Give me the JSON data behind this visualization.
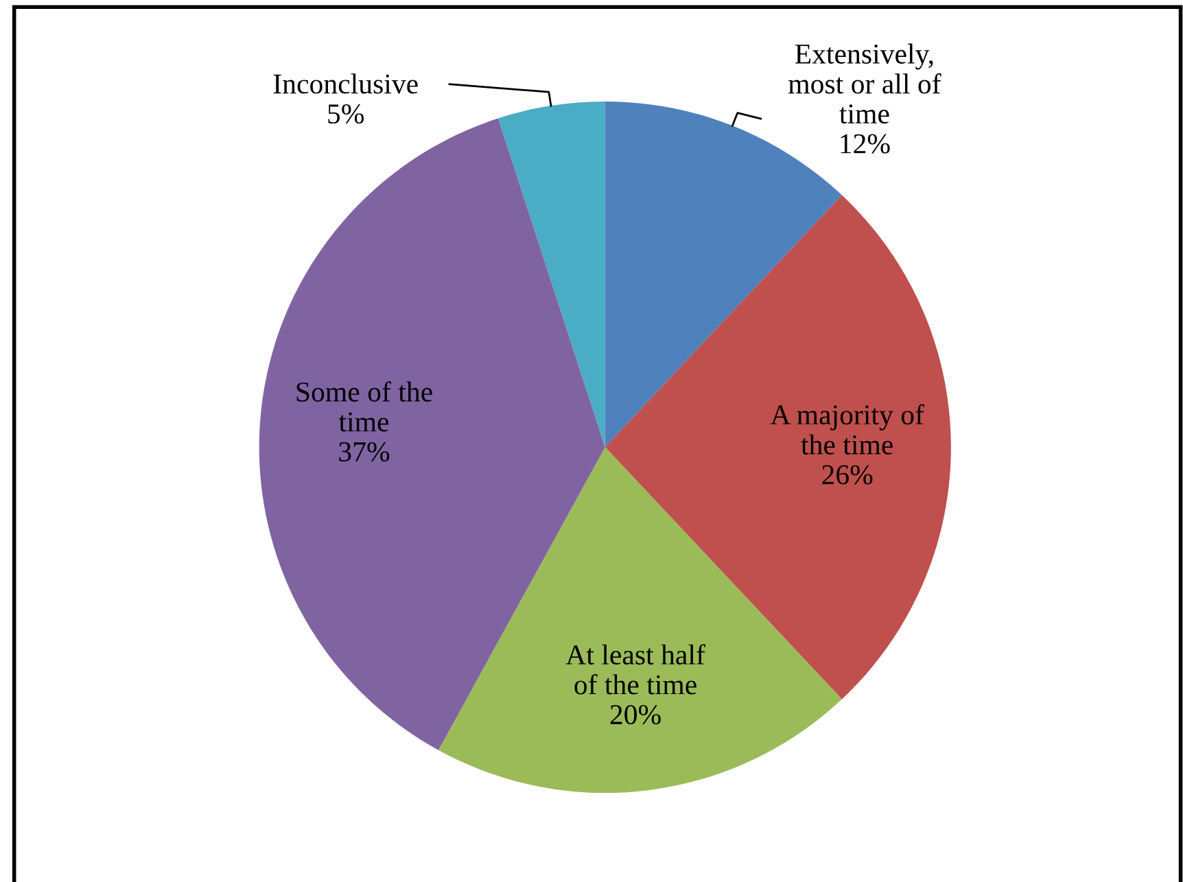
{
  "chart_data": {
    "type": "pie",
    "categories": [
      "Extensively,\nmost or all of\ntime",
      "A majority of\nthe time",
      "At least half\nof the time",
      "Some of the\ntime",
      "Inconclusive"
    ],
    "values": [
      12,
      26,
      20,
      37,
      5
    ],
    "value_labels": [
      "12%",
      "26%",
      "20%",
      "37%",
      "5%"
    ],
    "colors": [
      "#4f81bd",
      "#c0504d",
      "#9bbb59",
      "#8064a2",
      "#4bacc6"
    ],
    "legend": false
  }
}
